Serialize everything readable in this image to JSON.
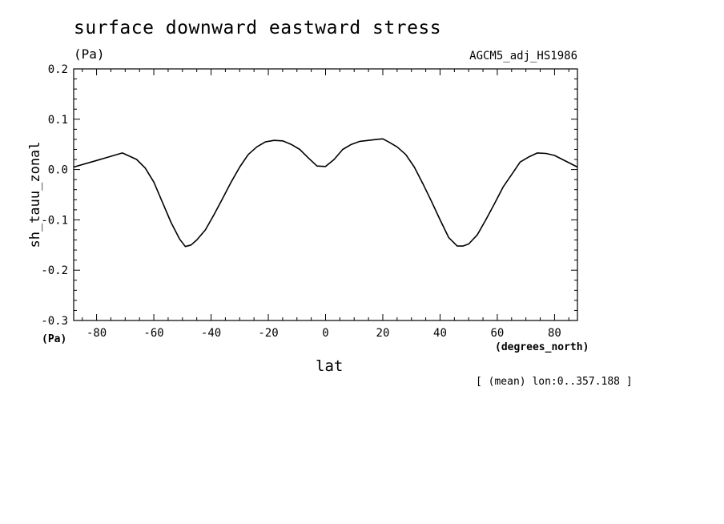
{
  "chart_data": {
    "type": "line",
    "title": "surface downward eastward stress",
    "unit_top": "(Pa)",
    "unit_bottom": "(Pa)",
    "dataset_label": "AGCM5_adj_HS1986",
    "ylabel": "sh_tauu_zonal",
    "xlabel": "lat",
    "x_unit": "(degrees_north)",
    "note": "[ (mean) lon:0..357.188 ]",
    "xlim": [
      -88,
      88
    ],
    "ylim": [
      -0.3,
      0.2
    ],
    "xticks": [
      -80,
      -60,
      -40,
      -20,
      0,
      20,
      40,
      60,
      80
    ],
    "xtick_labels": [
      "-80",
      "-60",
      "-40",
      "-20",
      "0",
      "20",
      "40",
      "60",
      "80"
    ],
    "yticks": [
      -0.3,
      -0.2,
      -0.1,
      0.0,
      0.1,
      0.2
    ],
    "ytick_labels": [
      "-0.3",
      "-0.2",
      "-0.1",
      "0.0",
      "0.1",
      "0.2"
    ],
    "grid": false,
    "color": "#000000",
    "series": [
      {
        "x": [
          -88,
          -80,
          -71,
          -66,
          -63,
          -60,
          -57,
          -54,
          -51,
          -49,
          -47,
          -45,
          -42,
          -39,
          -36,
          -33,
          -30,
          -27,
          -24,
          -21,
          -18,
          -15,
          -12,
          -9,
          -6,
          -3,
          0,
          3,
          6,
          9,
          12,
          15,
          18,
          20,
          22,
          25,
          28,
          31,
          34,
          37,
          40,
          43,
          46,
          48,
          50,
          53,
          56,
          59,
          62,
          65,
          68,
          71,
          74,
          77,
          80,
          88
        ],
        "y": [
          0.005,
          0.018,
          0.033,
          0.02,
          0.003,
          -0.025,
          -0.065,
          -0.105,
          -0.138,
          -0.153,
          -0.15,
          -0.14,
          -0.12,
          -0.09,
          -0.058,
          -0.025,
          0.005,
          0.03,
          0.045,
          0.055,
          0.058,
          0.057,
          0.05,
          0.04,
          0.023,
          0.007,
          0.006,
          0.02,
          0.04,
          0.05,
          0.056,
          0.058,
          0.06,
          0.061,
          0.055,
          0.045,
          0.03,
          0.005,
          -0.028,
          -0.063,
          -0.1,
          -0.135,
          -0.152,
          -0.152,
          -0.148,
          -0.13,
          -0.1,
          -0.068,
          -0.035,
          -0.01,
          0.015,
          0.025,
          0.033,
          0.032,
          0.028,
          0.005
        ]
      }
    ]
  }
}
